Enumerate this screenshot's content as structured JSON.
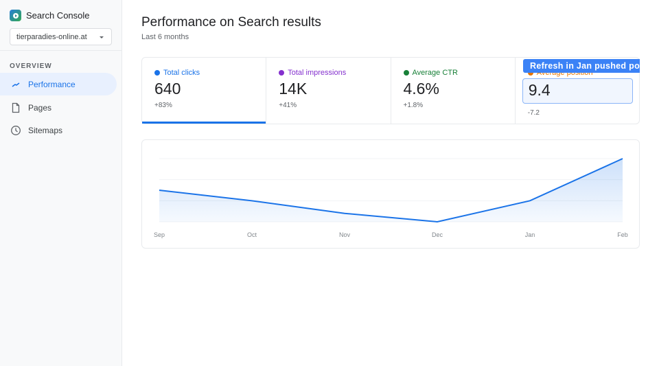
{
  "app": {
    "name": "Search Console",
    "property": "tierparadies-online.at"
  },
  "sidebar": {
    "section": "OVERVIEW",
    "items": [
      {
        "label": "Performance",
        "icon": "trend-icon",
        "active": true
      },
      {
        "label": "Pages",
        "icon": "page-icon",
        "active": false
      },
      {
        "label": "Sitemaps",
        "icon": "clock-icon",
        "active": false
      }
    ]
  },
  "header": {
    "title": "Performance on Search results",
    "subtitle": "Last 6 months"
  },
  "metrics": [
    {
      "label": "Total clicks",
      "value": "640",
      "change": "+83%",
      "color": "#1a73e8"
    },
    {
      "label": "Total impressions",
      "value": "14K",
      "change": "+41%",
      "color": "#8430ce"
    },
    {
      "label": "Average CTR",
      "value": "4.6%",
      "change": "+1.8%",
      "color": "#188038"
    },
    {
      "label": "Average position",
      "value": "9.4",
      "change": "-7.2",
      "color": "#e37400"
    }
  ],
  "tooltip": "Refresh in Jan pushed po",
  "chart_data": {
    "type": "area",
    "categories": [
      "Sep",
      "Oct",
      "Nov",
      "Dec",
      "Jan",
      "Feb"
    ],
    "values": [
      1.5,
      1.0,
      0.4,
      0,
      1.0,
      3.0
    ],
    "ylim": [
      0,
      3
    ],
    "grid": true,
    "color": "#1a73e8"
  }
}
